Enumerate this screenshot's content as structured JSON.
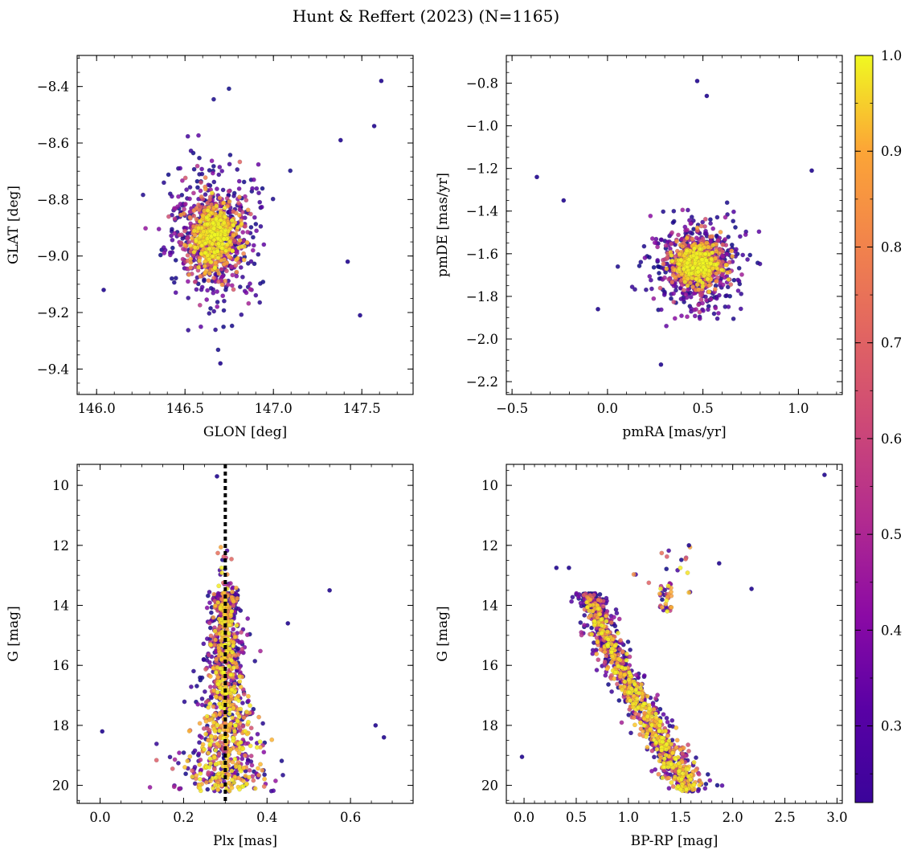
{
  "figure": {
    "title": "Hunt & Reffert (2023) (N=1165)"
  },
  "colorbar": {
    "colormap": "plasma",
    "range": [
      0.22,
      1.0
    ],
    "ticks": [
      0.3,
      0.4,
      0.5,
      0.6,
      0.7,
      0.8,
      0.9,
      1.0
    ],
    "tick_labels": [
      "0.3",
      "0.4",
      "0.5",
      "0.6",
      "0.7",
      "0.8",
      "0.9",
      "1.0"
    ]
  },
  "chart_data": [
    {
      "type": "scatter",
      "xlabel": "GLON [deg]",
      "ylabel": "GLAT [deg]",
      "xlim": [
        145.89,
        147.79
      ],
      "ylim": [
        -9.49,
        -8.29
      ],
      "y_inverted": false,
      "xticks": [
        146.0,
        146.5,
        147.0,
        147.5
      ],
      "xtick_labels": [
        "146.0",
        "146.5",
        "147.0",
        "147.5"
      ],
      "xminor_step": 0.1,
      "yticks": [
        -9.4,
        -9.2,
        -9.0,
        -8.8,
        -8.6,
        -8.4
      ],
      "ytick_labels": [
        "−9.4",
        "−9.2",
        "−9.0",
        "−8.8",
        "−8.6",
        "−8.4"
      ],
      "yminor_step": 0.05,
      "cluster": {
        "cx": 146.66,
        "cy": -8.93,
        "sx": 0.08,
        "sy": 0.07
      },
      "notable_points": [
        [
          147.61,
          -8.38
        ],
        [
          147.57,
          -8.54
        ],
        [
          147.38,
          -8.59
        ],
        [
          146.04,
          -9.12
        ],
        [
          147.49,
          -9.21
        ],
        [
          147.42,
          -9.02
        ],
        [
          146.7,
          -9.38
        ]
      ]
    },
    {
      "type": "scatter",
      "xlabel": "pmRA [mas/yr]",
      "ylabel": "pmDE [mas/yr]",
      "xlim": [
        -0.53,
        1.23
      ],
      "ylim": [
        -2.26,
        -0.67
      ],
      "y_inverted": false,
      "xticks": [
        -0.5,
        0.0,
        0.5,
        1.0
      ],
      "xtick_labels": [
        "−0.5",
        "0.0",
        "0.5",
        "1.0"
      ],
      "xminor_step": 0.1,
      "yticks": [
        -2.2,
        -2.0,
        -1.8,
        -1.6,
        -1.4,
        -1.2,
        -1.0,
        -0.8
      ],
      "ytick_labels": [
        "−2.2",
        "−2.0",
        "−1.8",
        "−1.6",
        "−1.4",
        "−1.2",
        "−1.0",
        "−0.8"
      ],
      "yminor_step": 0.05,
      "cluster": {
        "cx": 0.47,
        "cy": -1.65,
        "sx": 0.08,
        "sy": 0.07
      },
      "notable_points": [
        [
          -0.37,
          -1.24
        ],
        [
          -0.23,
          -1.35
        ],
        [
          0.47,
          -0.79
        ],
        [
          0.52,
          -0.86
        ],
        [
          0.28,
          -2.12
        ],
        [
          1.07,
          -1.21
        ],
        [
          -0.05,
          -1.86
        ]
      ]
    },
    {
      "type": "scatter",
      "xlabel": "Plx [mas]",
      "ylabel": "G [mag]",
      "xlim": [
        -0.055,
        0.75
      ],
      "ylim": [
        20.6,
        9.3
      ],
      "y_inverted": true,
      "xticks": [
        0.0,
        0.2,
        0.4,
        0.6
      ],
      "xtick_labels": [
        "0.0",
        "0.2",
        "0.4",
        "0.6"
      ],
      "xminor_step": 0.05,
      "yticks": [
        10,
        12,
        14,
        16,
        18,
        20
      ],
      "ytick_labels": [
        "10",
        "12",
        "14",
        "16",
        "18",
        "20"
      ],
      "yminor_step": 0.5,
      "reference_line_x": 0.3,
      "notable_points": [
        [
          0.28,
          9.7
        ],
        [
          0.55,
          13.5
        ],
        [
          0.66,
          18.0
        ],
        [
          0.68,
          18.4
        ],
        [
          0.005,
          18.2
        ],
        [
          0.45,
          14.6
        ]
      ]
    },
    {
      "type": "scatter",
      "xlabel": "BP-RP [mag]",
      "ylabel": "G [mag]",
      "xlim": [
        -0.17,
        3.05
      ],
      "ylim": [
        20.6,
        9.3
      ],
      "y_inverted": true,
      "xticks": [
        0.0,
        0.5,
        1.0,
        1.5,
        2.0,
        2.5,
        3.0
      ],
      "xtick_labels": [
        "0.0",
        "0.5",
        "1.0",
        "1.5",
        "2.0",
        "2.5",
        "3.0"
      ],
      "xminor_step": 0.1,
      "yticks": [
        10,
        12,
        14,
        16,
        18,
        20
      ],
      "ytick_labels": [
        "10",
        "12",
        "14",
        "16",
        "18",
        "20"
      ],
      "yminor_step": 0.5,
      "notable_points": [
        [
          2.88,
          9.65
        ],
        [
          -0.02,
          19.05
        ],
        [
          1.87,
          12.6
        ],
        [
          2.18,
          13.45
        ],
        [
          0.31,
          12.75
        ],
        [
          0.43,
          12.75
        ],
        [
          1.58,
          12.0
        ]
      ]
    }
  ]
}
